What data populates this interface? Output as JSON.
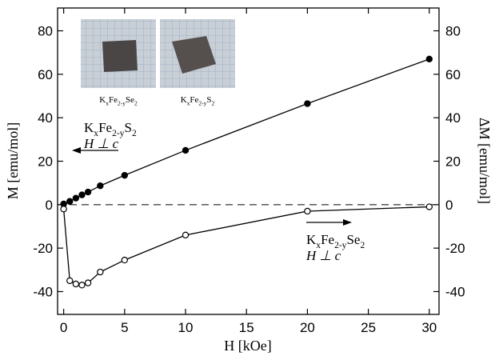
{
  "chart_data": {
    "type": "scatter",
    "xlabel": "H [kOe]",
    "ylabel": "M [emu/mol]",
    "y2label": "ΔM [emu/mol]",
    "xlim": [
      -0.5,
      30.8
    ],
    "xticks": [
      0,
      5,
      10,
      15,
      20,
      25,
      30
    ],
    "ylim": [
      -50.5,
      90.5
    ],
    "yticks": [
      -40,
      -20,
      0,
      20,
      40,
      60,
      80
    ],
    "y2lim": [
      -50.5,
      90.5
    ],
    "y2ticks": [
      -40,
      -20,
      0,
      20,
      40,
      60,
      80
    ],
    "reference_line": {
      "y": 0,
      "style": "dashed"
    },
    "series": [
      {
        "marker": "filled",
        "color": "#000000",
        "x": [
          0,
          0.5,
          1,
          1.5,
          2,
          3,
          5,
          10,
          20,
          30
        ],
        "values": [
          0.3,
          1.5,
          3,
          4.5,
          5.8,
          8.7,
          13.5,
          25,
          46.5,
          67
        ]
      },
      {
        "marker": "open",
        "color": "#000000",
        "axis": "y2",
        "x": [
          0,
          0.5,
          1,
          1.5,
          2,
          3,
          5,
          10,
          20,
          30
        ],
        "values": [
          -2,
          -35,
          -36.5,
          -37,
          -36,
          -31,
          -25.5,
          -14,
          -3,
          -1
        ]
      }
    ],
    "annotations": [
      {
        "parts": [
          "K",
          "x",
          "Fe",
          "2-y",
          "S",
          "2"
        ],
        "line2": "H ⊥ c"
      },
      {
        "parts": [
          "K",
          "x",
          "Fe",
          "2-y",
          "Se",
          "2"
        ],
        "line2": "H ⊥ c"
      }
    ],
    "image_labels": [
      {
        "parts": [
          "K",
          "x",
          "Fe",
          "2-y",
          "Se",
          "2"
        ]
      },
      {
        "parts": [
          "K",
          "x",
          "Fe",
          "2-y",
          "S",
          "2"
        ]
      }
    ]
  }
}
